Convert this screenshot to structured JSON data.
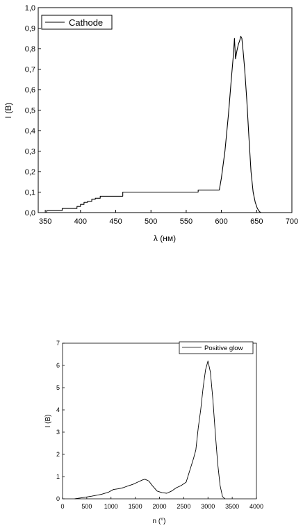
{
  "chart_data": [
    {
      "type": "line",
      "xlabel": "λ (нм)",
      "ylabel": "I (В)",
      "xlim": [
        340,
        700
      ],
      "ylim": [
        0,
        1.0
      ],
      "xticks": [
        350,
        400,
        450,
        500,
        550,
        600,
        650,
        700
      ],
      "yticks": [
        0.0,
        0.1,
        0.2,
        0.3,
        0.4,
        0.5,
        0.6,
        0.7,
        0.8,
        0.9,
        1.0
      ],
      "xtick_labels": [
        "350",
        "400",
        "450",
        "500",
        "550",
        "600",
        "650",
        "700"
      ],
      "ytick_labels": [
        "0,0",
        "0,1",
        "0,2",
        "0,3",
        "0,4",
        "0,5",
        "0,6",
        "0,7",
        "0,8",
        "0,9",
        "1,0"
      ],
      "legend": "top-left",
      "grid": false,
      "series": [
        {
          "name": "Cathode",
          "color": "#000000",
          "x": [
            352,
            352,
            374,
            374,
            395,
            395,
            400,
            400,
            405,
            405,
            410,
            410,
            416,
            416,
            421,
            421,
            428,
            428,
            460,
            460,
            567,
            567,
            597,
            600,
            605,
            610,
            614,
            617,
            618.5,
            620,
            622,
            624,
            626,
            627.5,
            629,
            631,
            633,
            636,
            639,
            642,
            645,
            648,
            651,
            654,
            656
          ],
          "y": [
            0.0,
            0.01,
            0.01,
            0.02,
            0.02,
            0.03,
            0.03,
            0.04,
            0.04,
            0.05,
            0.05,
            0.055,
            0.055,
            0.065,
            0.065,
            0.07,
            0.07,
            0.08,
            0.08,
            0.1,
            0.1,
            0.11,
            0.11,
            0.17,
            0.3,
            0.48,
            0.65,
            0.77,
            0.85,
            0.75,
            0.79,
            0.82,
            0.84,
            0.86,
            0.85,
            0.78,
            0.7,
            0.55,
            0.37,
            0.2,
            0.1,
            0.05,
            0.02,
            0.005,
            0.0
          ]
        }
      ]
    },
    {
      "type": "line",
      "xlabel": "n (°)",
      "ylabel": "I (B)",
      "xlim": [
        0,
        4000
      ],
      "ylim": [
        0,
        7
      ],
      "xticks": [
        0,
        500,
        1000,
        1500,
        2000,
        2500,
        3000,
        3500,
        4000
      ],
      "yticks": [
        0,
        1,
        2,
        3,
        4,
        5,
        6,
        7
      ],
      "xtick_labels": [
        "0",
        "500",
        "1000",
        "1500",
        "2000",
        "2500",
        "3000",
        "3500",
        "4000"
      ],
      "ytick_labels": [
        "0",
        "1",
        "2",
        "3",
        "4",
        "5",
        "6",
        "7"
      ],
      "legend": "top-right",
      "grid": false,
      "series": [
        {
          "name": "Positive glow",
          "color": "#000000",
          "x": [
            250,
            400,
            600,
            800,
            950,
            1050,
            1150,
            1250,
            1350,
            1450,
            1550,
            1650,
            1700,
            1780,
            1850,
            1950,
            2050,
            2150,
            2250,
            2350,
            2450,
            2550,
            2600,
            2700,
            2750,
            2800,
            2850,
            2900,
            2950,
            3000,
            3050,
            3100,
            3150,
            3200,
            3250,
            3300,
            3350
          ],
          "y": [
            0.0,
            0.05,
            0.12,
            0.2,
            0.3,
            0.42,
            0.45,
            0.5,
            0.58,
            0.65,
            0.75,
            0.85,
            0.88,
            0.8,
            0.6,
            0.35,
            0.28,
            0.25,
            0.35,
            0.5,
            0.6,
            0.75,
            1.1,
            1.8,
            2.2,
            3.2,
            4.0,
            5.0,
            5.8,
            6.2,
            5.7,
            4.5,
            3.0,
            1.6,
            0.6,
            0.1,
            0.0
          ]
        }
      ]
    }
  ]
}
